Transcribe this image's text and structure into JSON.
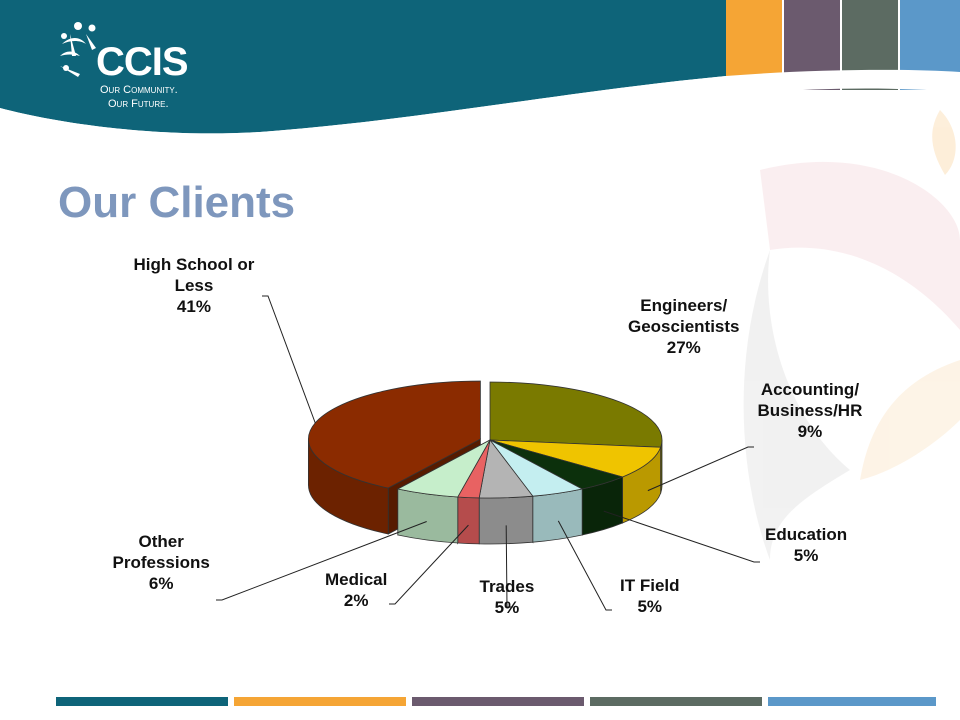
{
  "logo": {
    "name": "CCIS",
    "tagline_line1": "Our Community.",
    "tagline_line2": "Our Future."
  },
  "slide": {
    "title": "Our Clients"
  },
  "colors": {
    "header_teal": "#0e6479",
    "accent_orange": "#f5a535",
    "accent_purple": "#6b5a6e",
    "accent_gray": "#5c6b62",
    "accent_blue": "#5b98c9",
    "title_blue": "#7e97bd"
  },
  "chart_data": {
    "type": "pie",
    "title": "",
    "slices": [
      {
        "name": "Engineers/ Geoscientists",
        "label_lines": [
          "Engineers/",
          "Geoscientists"
        ],
        "value": 27,
        "value_label": "27%",
        "color": "#7a7a00"
      },
      {
        "name": "Accounting/ Business/HR",
        "label_lines": [
          "Accounting/",
          "Business/HR"
        ],
        "value": 9,
        "value_label": "9%",
        "color": "#efc400"
      },
      {
        "name": "Education",
        "label_lines": [
          "Education"
        ],
        "value": 5,
        "value_label": "5%",
        "color": "#0c300c"
      },
      {
        "name": "IT Field",
        "label_lines": [
          "IT Field"
        ],
        "value": 5,
        "value_label": "5%",
        "color": "#c4eef0"
      },
      {
        "name": "Trades",
        "label_lines": [
          "Trades"
        ],
        "value": 5,
        "value_label": "5%",
        "color": "#b4b4b4"
      },
      {
        "name": "Medical",
        "label_lines": [
          "Medical"
        ],
        "value": 2,
        "value_label": "2%",
        "color": "#e86262"
      },
      {
        "name": "Other Professions",
        "label_lines": [
          "Other",
          "Professions"
        ],
        "value": 6,
        "value_label": "6%",
        "color": "#c6eecb"
      },
      {
        "name": "High School or Less",
        "label_lines": [
          "High School or",
          "Less"
        ],
        "value": 41,
        "value_label": "41%",
        "color": "#8b2b00"
      }
    ]
  }
}
